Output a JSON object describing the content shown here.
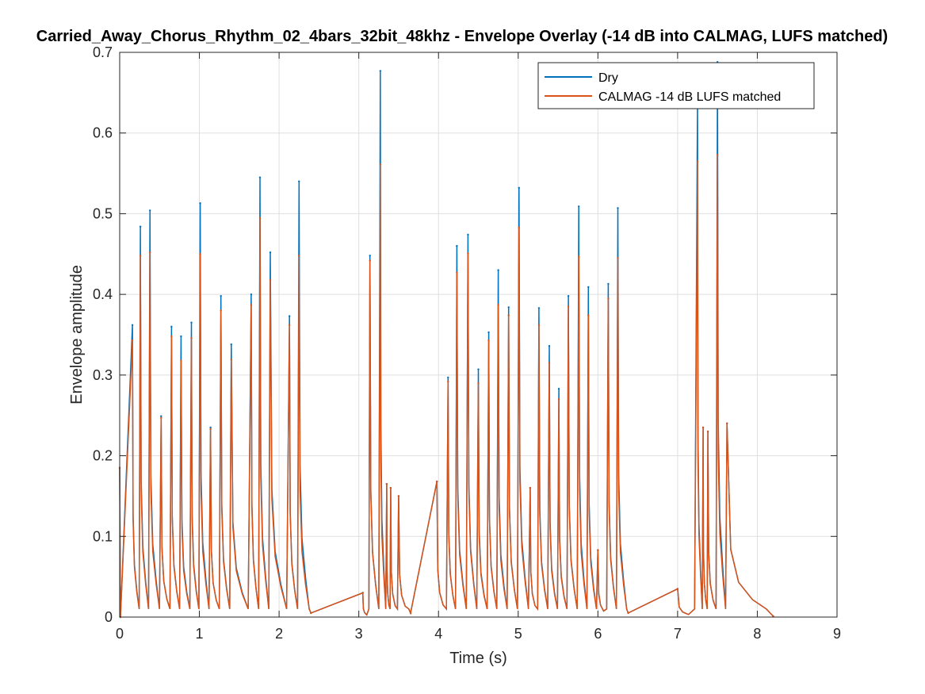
{
  "chart_data": {
    "type": "line",
    "title": "Carried_Away_Chorus_Rhythm_02_4bars_32bit_48khz - Envelope Overlay (-14 dB into CALMAG, LUFS matched)",
    "xlabel": "Time (s)",
    "ylabel": "Envelope amplitude",
    "xlim": [
      0,
      9
    ],
    "ylim": [
      0,
      0.7
    ],
    "xticks": [
      0,
      1,
      2,
      3,
      4,
      5,
      6,
      7,
      8,
      9
    ],
    "xtick_labels": [
      "0",
      "1",
      "2",
      "3",
      "4",
      "5",
      "6",
      "7",
      "8",
      "9"
    ],
    "yticks": [
      0,
      0.1,
      0.2,
      0.3,
      0.4,
      0.5,
      0.6,
      0.7
    ],
    "ytick_labels": [
      "0",
      "0.1",
      "0.2",
      "0.3",
      "0.4",
      "0.5",
      "0.6",
      "0.7"
    ],
    "grid": true,
    "legend_position": "top-right",
    "series": [
      {
        "name": "Dry",
        "color": "#0072BD",
        "x": [
          0.0,
          0.01,
          0.16,
          0.26,
          0.38,
          0.52,
          0.65,
          0.77,
          0.9,
          1.01,
          1.14,
          1.27,
          1.4,
          1.65,
          1.76,
          1.89,
          2.13,
          2.25,
          2.4,
          3.05,
          3.14,
          3.27,
          3.35,
          3.4,
          3.5,
          3.65,
          3.98,
          4.12,
          4.23,
          4.37,
          4.5,
          4.63,
          4.75,
          4.88,
          5.01,
          5.15,
          5.26,
          5.39,
          5.51,
          5.63,
          5.76,
          5.88,
          6.0,
          6.13,
          6.25,
          6.38,
          7.0,
          7.25,
          7.32,
          7.38,
          7.5,
          7.62,
          8.2
        ],
        "y": [
          0.185,
          0.0,
          0.362,
          0.484,
          0.504,
          0.249,
          0.36,
          0.348,
          0.365,
          0.513,
          0.235,
          0.398,
          0.338,
          0.4,
          0.545,
          0.452,
          0.373,
          0.54,
          0.005,
          0.03,
          0.448,
          0.677,
          0.165,
          0.16,
          0.15,
          0.005,
          0.168,
          0.297,
          0.46,
          0.474,
          0.307,
          0.353,
          0.43,
          0.384,
          0.532,
          0.16,
          0.383,
          0.336,
          0.283,
          0.398,
          0.509,
          0.409,
          0.083,
          0.413,
          0.507,
          0.005,
          0.035,
          0.645,
          0.235,
          0.23,
          0.688,
          0.24,
          0.001
        ]
      },
      {
        "name": "CALMAG -14 dB LUFS matched",
        "color": "#D95319",
        "x": [
          0.0,
          0.01,
          0.16,
          0.26,
          0.38,
          0.52,
          0.65,
          0.77,
          0.9,
          1.01,
          1.14,
          1.27,
          1.4,
          1.65,
          1.76,
          1.89,
          2.13,
          2.25,
          2.4,
          3.05,
          3.14,
          3.27,
          3.35,
          3.4,
          3.5,
          3.65,
          3.98,
          4.12,
          4.23,
          4.37,
          4.5,
          4.63,
          4.75,
          4.88,
          5.01,
          5.15,
          5.26,
          5.39,
          5.51,
          5.63,
          5.76,
          5.88,
          6.0,
          6.13,
          6.25,
          6.38,
          7.0,
          7.25,
          7.32,
          7.38,
          7.5,
          7.62,
          8.2
        ],
        "y": [
          0.185,
          0.0,
          0.343,
          0.448,
          0.452,
          0.247,
          0.348,
          0.318,
          0.346,
          0.45,
          0.233,
          0.38,
          0.319,
          0.387,
          0.495,
          0.418,
          0.362,
          0.448,
          0.005,
          0.03,
          0.442,
          0.561,
          0.165,
          0.16,
          0.15,
          0.005,
          0.168,
          0.292,
          0.427,
          0.451,
          0.29,
          0.343,
          0.387,
          0.374,
          0.483,
          0.16,
          0.362,
          0.315,
          0.27,
          0.385,
          0.447,
          0.374,
          0.083,
          0.395,
          0.445,
          0.005,
          0.035,
          0.565,
          0.235,
          0.23,
          0.573,
          0.24,
          0.001
        ]
      }
    ]
  }
}
